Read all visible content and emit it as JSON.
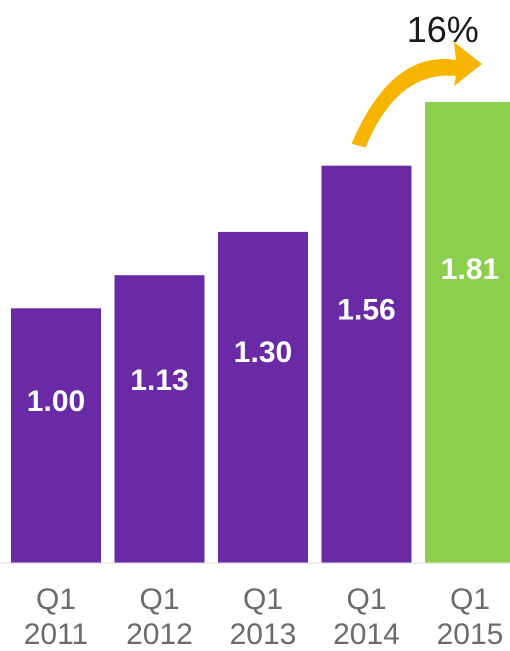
{
  "chart_data": {
    "type": "bar",
    "categories": [
      "Q1 2011",
      "Q1 2012",
      "Q1 2013",
      "Q1 2014",
      "Q1 2015"
    ],
    "category_lines": [
      [
        "Q1",
        "2011"
      ],
      [
        "Q1",
        "2012"
      ],
      [
        "Q1",
        "2013"
      ],
      [
        "Q1",
        "2014"
      ],
      [
        "Q1",
        "2015"
      ]
    ],
    "values": [
      1.0,
      1.13,
      1.3,
      1.56,
      1.81
    ],
    "value_labels": [
      "1.00",
      "1.13",
      "1.30",
      "1.56",
      "1.81"
    ],
    "bar_colors": [
      "#6a2aa6",
      "#6a2aa6",
      "#6a2aa6",
      "#6a2aa6",
      "#8ccf4d"
    ],
    "annotation": {
      "text": "16%",
      "from_category": "Q1 2014",
      "to_category": "Q1 2015",
      "arrow_color": "#f7b500"
    },
    "title": "",
    "xlabel": "",
    "ylabel": "",
    "ylim": [
      0,
      1.81
    ],
    "grid": false,
    "legend": "none"
  }
}
